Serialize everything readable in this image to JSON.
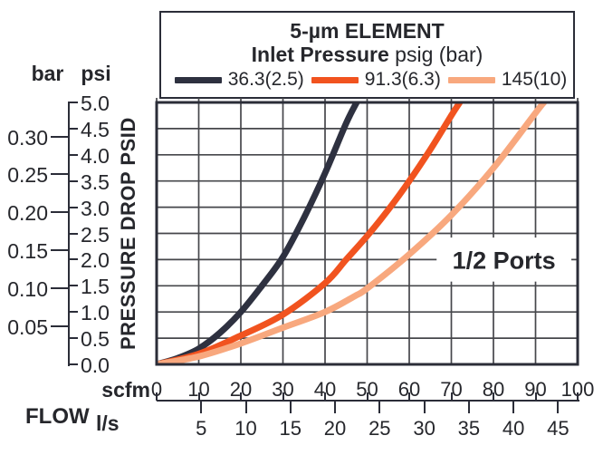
{
  "title": {
    "line1": "5-µm ELEMENT",
    "line2_bold": "Inlet Pressure",
    "line2_rest": " psig (bar)"
  },
  "legend": [
    {
      "label": "36.3(2.5)",
      "color": "#2e3140"
    },
    {
      "label": "91.3(6.3)",
      "color": "#f1531f"
    },
    {
      "label": "145(10)",
      "color": "#f8a87e"
    }
  ],
  "y_axis": {
    "unit_left": "bar",
    "unit_right": "psi",
    "axis_label": "PRESSURE DROP PSID",
    "psi_ticks": [
      "5.0",
      "4.5",
      "4.0",
      "3.5",
      "3.0",
      "2.5",
      "2.0",
      "1.5",
      "1.0",
      "0.5",
      "0.0"
    ],
    "bar_ticks": [
      "0.30",
      "0.25",
      "0.20",
      "0.15",
      "0.10",
      "0.05"
    ]
  },
  "x_axis": {
    "flow_label": "FLOW",
    "scfm_label": "scfm",
    "ls_label": "l/s",
    "scfm_ticks": [
      0,
      10,
      20,
      30,
      40,
      50,
      60,
      70,
      80,
      90,
      100
    ],
    "ls_ticks": [
      5,
      10,
      15,
      20,
      25,
      30,
      35,
      40,
      45
    ]
  },
  "annotation": "1/2 Ports",
  "colors": {
    "text": "#26272c",
    "axis": "#2b2d38",
    "grid": "#46474b",
    "background": "#ffffff"
  },
  "chart_data": {
    "type": "line",
    "title": "5-µm ELEMENT",
    "subtitle": "Inlet Pressure psig (bar)",
    "xlabel": "FLOW",
    "x_units": [
      "scfm",
      "l/s"
    ],
    "ylabel": "PRESSURE DROP PSID",
    "y_units": [
      "psi",
      "bar"
    ],
    "xlim_scfm": [
      0,
      100
    ],
    "ls_axis_ticks": [
      5,
      10,
      15,
      20,
      25,
      30,
      35,
      40,
      45
    ],
    "ylim_psi": [
      0,
      5.0
    ],
    "ylim_bar": [
      0,
      0.345
    ],
    "grid": true,
    "grid_step_scfm": 10,
    "grid_step_psi": 0.5,
    "legend_position": "top",
    "annotation": "1/2 Ports",
    "series": [
      {
        "name": "36.3(2.5)",
        "color": "#2e3140",
        "x_scfm": [
          0,
          5,
          10,
          15,
          20,
          25,
          30,
          35,
          40,
          45,
          47.5
        ],
        "y_psid": [
          0,
          0.12,
          0.3,
          0.6,
          1.0,
          1.5,
          2.05,
          2.8,
          3.65,
          4.6,
          5.0
        ]
      },
      {
        "name": "91.3(6.3)",
        "color": "#f1531f",
        "x_scfm": [
          0,
          10,
          20,
          30,
          40,
          45,
          50,
          55,
          60,
          65,
          70,
          72
        ],
        "y_psid": [
          0,
          0.2,
          0.55,
          0.95,
          1.55,
          2.0,
          2.45,
          2.95,
          3.5,
          4.1,
          4.75,
          5.0
        ]
      },
      {
        "name": "145(10)",
        "color": "#f8a87e",
        "x_scfm": [
          0,
          10,
          20,
          30,
          40,
          47,
          50,
          60,
          70,
          80,
          90,
          92
        ],
        "y_psid": [
          0,
          0.15,
          0.4,
          0.7,
          1.0,
          1.3,
          1.45,
          2.1,
          2.85,
          3.75,
          4.8,
          5.0
        ]
      }
    ]
  }
}
